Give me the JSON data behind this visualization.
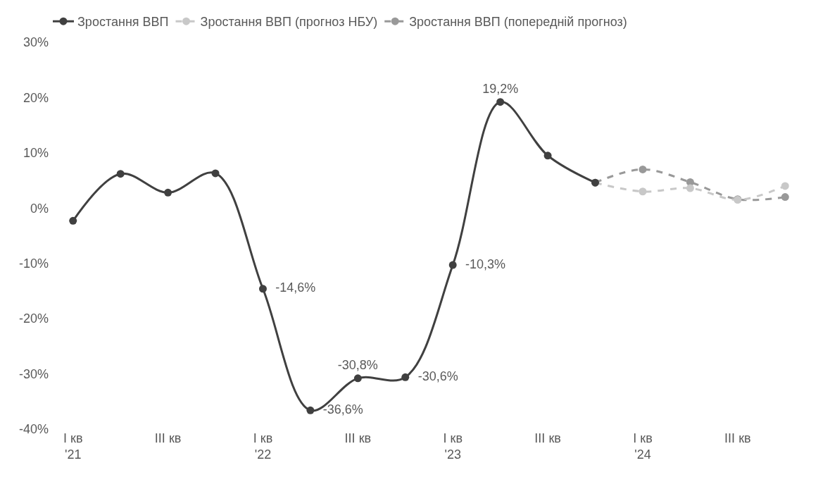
{
  "chart_data": {
    "type": "line",
    "categories": [
      "I кв\n'21",
      null,
      "III кв",
      null,
      "I кв\n'22",
      null,
      "III кв",
      null,
      "I кв\n'23",
      null,
      "III кв",
      null,
      "I кв\n'24",
      null,
      "III кв",
      null
    ],
    "series": [
      {
        "name": "Зростання ВВП",
        "color": "#404040",
        "line_style": "solid",
        "values": [
          -2.3,
          6.2,
          2.8,
          6.3,
          -14.6,
          -36.6,
          -30.8,
          -30.6,
          -10.3,
          19.2,
          9.5,
          4.6,
          null,
          null,
          null,
          null
        ],
        "value_labels": [
          null,
          null,
          null,
          null,
          "-14,6%",
          "-36,6%",
          "-30,8%",
          "-30,6%",
          "-10,3%",
          "19,2%",
          null,
          null,
          null,
          null,
          null,
          null
        ]
      },
      {
        "name": "Зростання ВВП (прогноз НБУ)",
        "color": "#c8c8c8",
        "line_style": "dashed",
        "values": [
          null,
          null,
          null,
          null,
          null,
          null,
          null,
          null,
          null,
          null,
          null,
          4.6,
          3.0,
          3.6,
          1.5,
          4.0
        ]
      },
      {
        "name": "Зростання ВВП (попередній прогноз)",
        "color": "#999999",
        "line_style": "dashed",
        "values": [
          null,
          null,
          null,
          null,
          null,
          null,
          null,
          null,
          null,
          null,
          null,
          4.6,
          7.0,
          4.7,
          1.6,
          2.0
        ]
      }
    ],
    "ylim": [
      -40,
      30
    ],
    "yticks": [
      {
        "value": -40,
        "label": "-40%"
      },
      {
        "value": -30,
        "label": "-30%"
      },
      {
        "value": -20,
        "label": "-20%"
      },
      {
        "value": -10,
        "label": "-10%"
      },
      {
        "value": 0,
        "label": "0%"
      },
      {
        "value": 10,
        "label": "10%"
      },
      {
        "value": 20,
        "label": "20%"
      },
      {
        "value": 30,
        "label": "30%"
      }
    ],
    "marker": "circle",
    "legend": "top left"
  }
}
